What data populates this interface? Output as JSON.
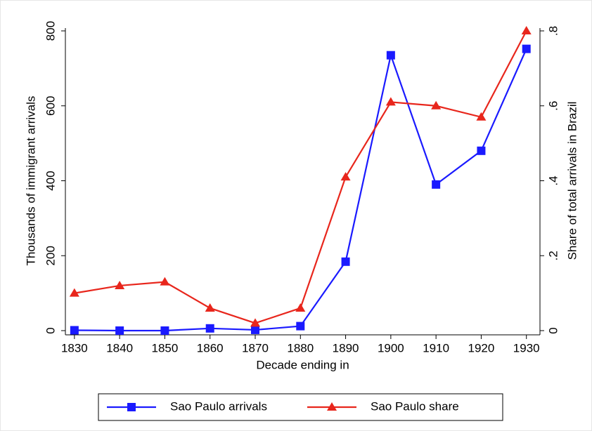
{
  "chart_data": {
    "type": "line",
    "x": [
      1830,
      1840,
      1850,
      1860,
      1870,
      1880,
      1890,
      1900,
      1910,
      1920,
      1930
    ],
    "x_label": "Decade ending in",
    "y_label": "Thousands of immigrant arrivals",
    "y2_label": "Share of total arrivals in Brazil",
    "series": [
      {
        "name": "Sao Paulo arrivals",
        "color": "#1a1aff",
        "marker": "square",
        "axis": "y",
        "values": [
          1,
          0,
          0,
          6,
          2,
          12,
          184,
          735,
          390,
          480,
          752
        ]
      },
      {
        "name": "Sao Paulo share",
        "color": "#e8261c",
        "marker": "triangle",
        "axis": "y2",
        "values": [
          0.1,
          0.12,
          0.13,
          0.06,
          0.02,
          0.06,
          0.41,
          0.61,
          0.6,
          0.57,
          0.8
        ]
      }
    ],
    "xlim": [
      1828,
      1933
    ],
    "xticks": [
      1830,
      1840,
      1850,
      1860,
      1870,
      1880,
      1890,
      1900,
      1910,
      1920,
      1930
    ],
    "ylim": [
      0,
      800
    ],
    "yticks": [
      0,
      200,
      400,
      600,
      800
    ],
    "y2lim": [
      0,
      0.8
    ],
    "y2ticks": [
      0,
      {
        "value": 0.2,
        "label": ".2"
      },
      {
        "value": 0.4,
        "label": ".4"
      },
      {
        "value": 0.6,
        "label": ".6"
      },
      {
        "value": 0.8,
        "label": ".8"
      }
    ],
    "grid": false,
    "legend": "bottom"
  }
}
